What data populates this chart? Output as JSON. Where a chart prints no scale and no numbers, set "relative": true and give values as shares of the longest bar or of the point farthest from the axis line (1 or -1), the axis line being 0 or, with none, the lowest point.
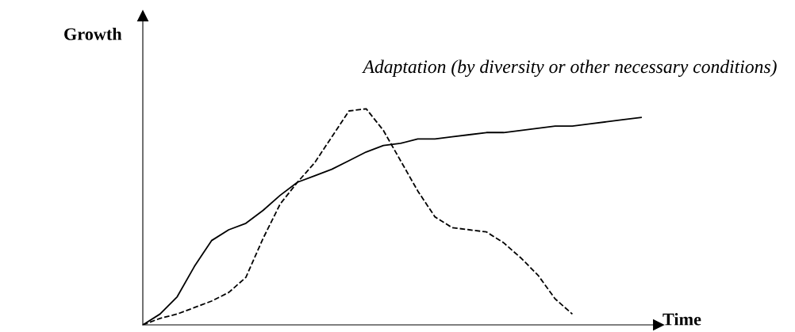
{
  "chart_data": {
    "type": "line",
    "relative": true,
    "xlabel": "Time",
    "ylabel": "Growth",
    "legend": false,
    "marker": "none",
    "categories": [
      null,
      null,
      null,
      null,
      null,
      null,
      null,
      null,
      null,
      null,
      null,
      null,
      null,
      null,
      null,
      null,
      null,
      null,
      null,
      null,
      null,
      null,
      null,
      null,
      null,
      null,
      null,
      null,
      null,
      null
    ],
    "series": [
      {
        "name": "Adaptation (by diversity or other necessary conditions)",
        "color": "#000000",
        "line_style": "solid",
        "values": [
          0,
          0.05,
          0.13,
          0.27,
          0.39,
          0.44,
          0.47,
          0.53,
          0.6,
          0.66,
          0.69,
          0.72,
          0.76,
          0.8,
          0.83,
          0.84,
          0.86,
          0.86,
          0.87,
          0.88,
          0.89,
          0.89,
          0.9,
          0.91,
          0.92,
          0.92,
          0.93,
          0.94,
          0.95,
          0.96
        ]
      },
      {
        "color": "#000000",
        "line_style": "dashed",
        "values": [
          0,
          0.03,
          0.05,
          0.08,
          0.11,
          0.15,
          0.22,
          0.4,
          0.56,
          0.66,
          0.75,
          0.87,
          0.99,
          1,
          0.9,
          0.76,
          0.62,
          0.5,
          0.45,
          0.44,
          0.43,
          0.38,
          0.31,
          0.23,
          0.12,
          0.05,
          null,
          null,
          null,
          null
        ]
      }
    ]
  }
}
